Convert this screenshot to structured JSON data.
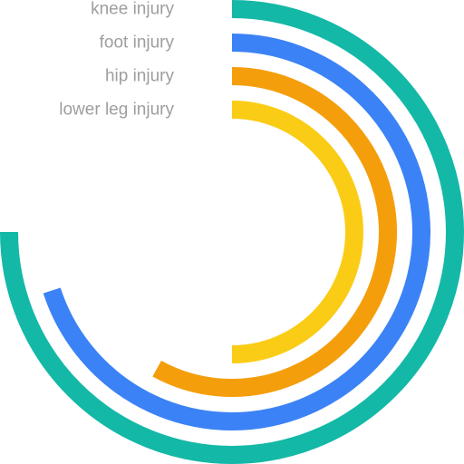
{
  "chart_data": {
    "type": "radial-bar",
    "max": 100,
    "series": [
      {
        "name": "knee injury",
        "value": 75,
        "color": "#14b8a6"
      },
      {
        "name": "foot injury",
        "value": 70,
        "color": "#3b82f6"
      },
      {
        "name": "hip injury",
        "value": 58,
        "color": "#f59e0b"
      },
      {
        "name": "lower leg injury",
        "value": 50,
        "color": "#facc15"
      }
    ]
  }
}
